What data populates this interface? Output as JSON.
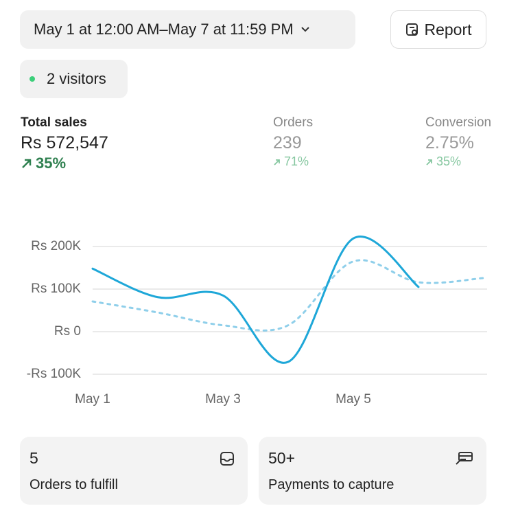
{
  "date_range": "May 1 at 12:00 AM–May 7 at 11:59 PM",
  "report_button": "Report",
  "visitors": "2 visitors",
  "metrics": [
    {
      "label": "Total sales",
      "value": "Rs 572,547",
      "change": "35%"
    },
    {
      "label": "Orders",
      "value": "239",
      "change": "71%"
    },
    {
      "label": "Conversion",
      "value": "2.75%",
      "change": "35%"
    }
  ],
  "chart_data": {
    "type": "line",
    "categories": [
      "May 1",
      null,
      "May 3",
      null,
      "May 5",
      null,
      null
    ],
    "series": [
      {
        "color": "#1ea7d8",
        "values": [
          148000,
          81000,
          85000,
          -71000,
          219000,
          105000,
          null
        ]
      },
      {
        "color": "#8fcfea",
        "values": [
          71000,
          45000,
          15000,
          15000,
          165000,
          116000,
          126000
        ]
      }
    ],
    "ylim": [
      -100000,
      200000
    ],
    "yticks": [
      {
        "value": -100000,
        "label": "-Rs 100K"
      },
      {
        "value": 0,
        "label": "Rs 0"
      },
      {
        "value": 100000,
        "label": "Rs 100K"
      },
      {
        "value": 200000,
        "label": "Rs 200K"
      }
    ],
    "grid": true
  },
  "cards": [
    {
      "value": "5",
      "label": "Orders to fulfill"
    },
    {
      "value": "50+",
      "label": "Payments to capture"
    }
  ]
}
